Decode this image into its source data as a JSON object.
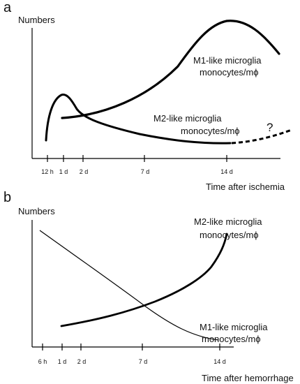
{
  "panels": [
    {
      "letter": "a",
      "y_axis_label": "Numbers",
      "x_axis_label": "Time after ischemia",
      "ticks": [
        "12 h",
        "1 d",
        "2 d",
        "7 d",
        "14 d"
      ],
      "curves": [
        {
          "label_line1": "M1-like microglia",
          "label_line2": "monocytes/mϕ"
        },
        {
          "label_line1": "M2-like microglia",
          "label_line2": "monocytes/mϕ"
        }
      ],
      "annotation": "?"
    },
    {
      "letter": "b",
      "y_axis_label": "Numbers",
      "x_axis_label": "Time after hemorrhage",
      "ticks": [
        "6 h",
        "1 d",
        "2 d",
        "7 d",
        "14 d"
      ],
      "curves": [
        {
          "label_line1": "M2-like microglia",
          "label_line2": "monocytes/mϕ"
        },
        {
          "label_line1": "M1-like microglia",
          "label_line2": "monocytes/mϕ"
        }
      ]
    }
  ],
  "colors": {
    "line": "#000000",
    "text": "#111111"
  }
}
